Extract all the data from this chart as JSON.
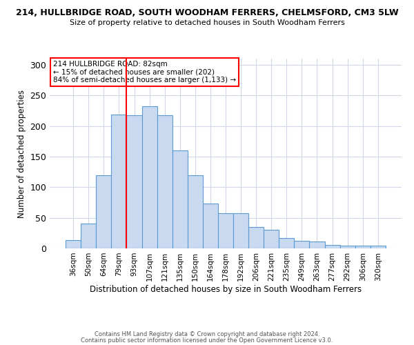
{
  "title1": "214, HULLBRIDGE ROAD, SOUTH WOODHAM FERRERS, CHELMSFORD, CM3 5LW",
  "title2": "Size of property relative to detached houses in South Woodham Ferrers",
  "xlabel": "Distribution of detached houses by size in South Woodham Ferrers",
  "ylabel": "Number of detached properties",
  "categories": [
    "36sqm",
    "50sqm",
    "64sqm",
    "79sqm",
    "93sqm",
    "107sqm",
    "121sqm",
    "135sqm",
    "150sqm",
    "164sqm",
    "178sqm",
    "192sqm",
    "206sqm",
    "221sqm",
    "235sqm",
    "249sqm",
    "263sqm",
    "277sqm",
    "292sqm",
    "306sqm",
    "320sqm"
  ],
  "values": [
    14,
    41,
    120,
    219,
    218,
    232,
    218,
    160,
    119,
    73,
    57,
    57,
    35,
    30,
    17,
    12,
    11,
    6,
    5,
    5,
    4
  ],
  "bar_color": "#c9d9f0",
  "bar_edge_color": "#5b9bd5",
  "red_line_x": 3.5,
  "annotation_line1": "214 HULLBRIDGE ROAD: 82sqm",
  "annotation_line2": "← 15% of detached houses are smaller (202)",
  "annotation_line3": "84% of semi-detached houses are larger (1,133) →",
  "footer1": "Contains HM Land Registry data © Crown copyright and database right 2024.",
  "footer2": "Contains public sector information licensed under the Open Government Licence v3.0.",
  "ylim": [
    0,
    310
  ],
  "yticks": [
    0,
    50,
    100,
    150,
    200,
    250,
    300
  ],
  "background_color": "#ffffff",
  "grid_color": "#d0d8e8"
}
